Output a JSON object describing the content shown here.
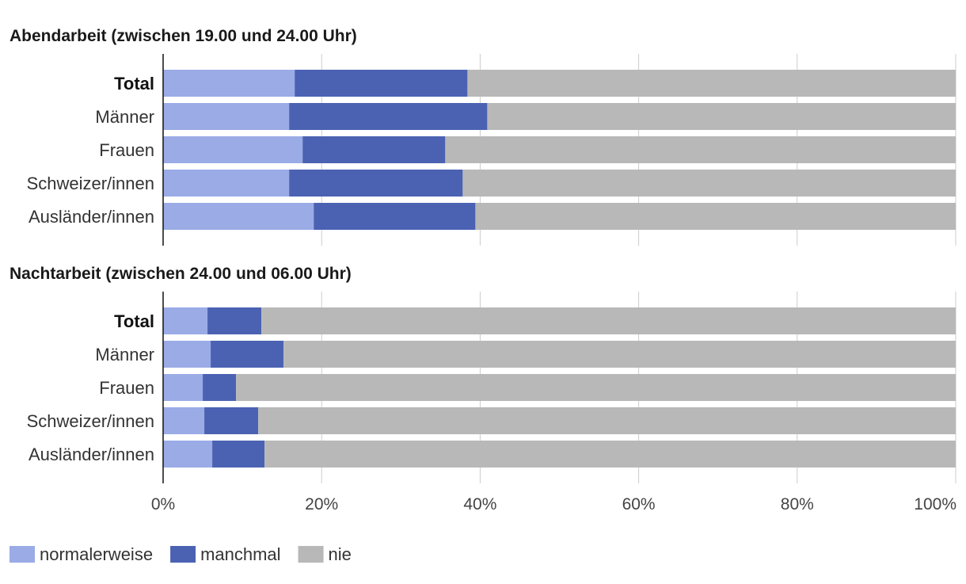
{
  "chart_data": [
    {
      "type": "bar",
      "orientation": "horizontal",
      "stacked": true,
      "title": "Abendarbeit (zwischen 19.00 und 24.00 Uhr)",
      "categories": [
        "Total",
        "Männer",
        "Frauen",
        "Schweizer/innen",
        "Ausländer/innen"
      ],
      "bold_categories": [
        "Total"
      ],
      "series": [
        {
          "name": "normalerweise",
          "color": "#9aabe6",
          "values": [
            16.6,
            15.9,
            17.6,
            15.9,
            19.0
          ]
        },
        {
          "name": "manchmal",
          "color": "#4b62b3",
          "values": [
            21.8,
            25.0,
            18.0,
            21.9,
            20.4
          ]
        },
        {
          "name": "nie",
          "color": "#b8b8b8",
          "values": [
            61.6,
            59.1,
            64.4,
            62.2,
            60.6
          ]
        }
      ],
      "xlim": [
        0,
        100
      ],
      "grid": true
    },
    {
      "type": "bar",
      "orientation": "horizontal",
      "stacked": true,
      "title": "Nachtarbeit (zwischen 24.00 und 06.00 Uhr)",
      "categories": [
        "Total",
        "Männer",
        "Frauen",
        "Schweizer/innen",
        "Ausländer/innen"
      ],
      "bold_categories": [
        "Total"
      ],
      "series": [
        {
          "name": "normalerweise",
          "color": "#9aabe6",
          "values": [
            5.6,
            6.0,
            5.0,
            5.2,
            6.2
          ]
        },
        {
          "name": "manchmal",
          "color": "#4b62b3",
          "values": [
            6.8,
            9.2,
            4.2,
            6.8,
            6.6
          ]
        },
        {
          "name": "nie",
          "color": "#b8b8b8",
          "values": [
            87.6,
            84.8,
            90.8,
            88.0,
            87.2
          ]
        }
      ],
      "xlim": [
        0,
        100
      ],
      "xticks": [
        "0%",
        "20%",
        "40%",
        "60%",
        "80%",
        "100%"
      ],
      "grid": true
    }
  ],
  "legend": {
    "position": "bottom-left",
    "items": [
      {
        "label": "normalerweise",
        "color": "#9aabe6"
      },
      {
        "label": "manchmal",
        "color": "#4b62b3"
      },
      {
        "label": "nie",
        "color": "#b8b8b8"
      }
    ]
  }
}
